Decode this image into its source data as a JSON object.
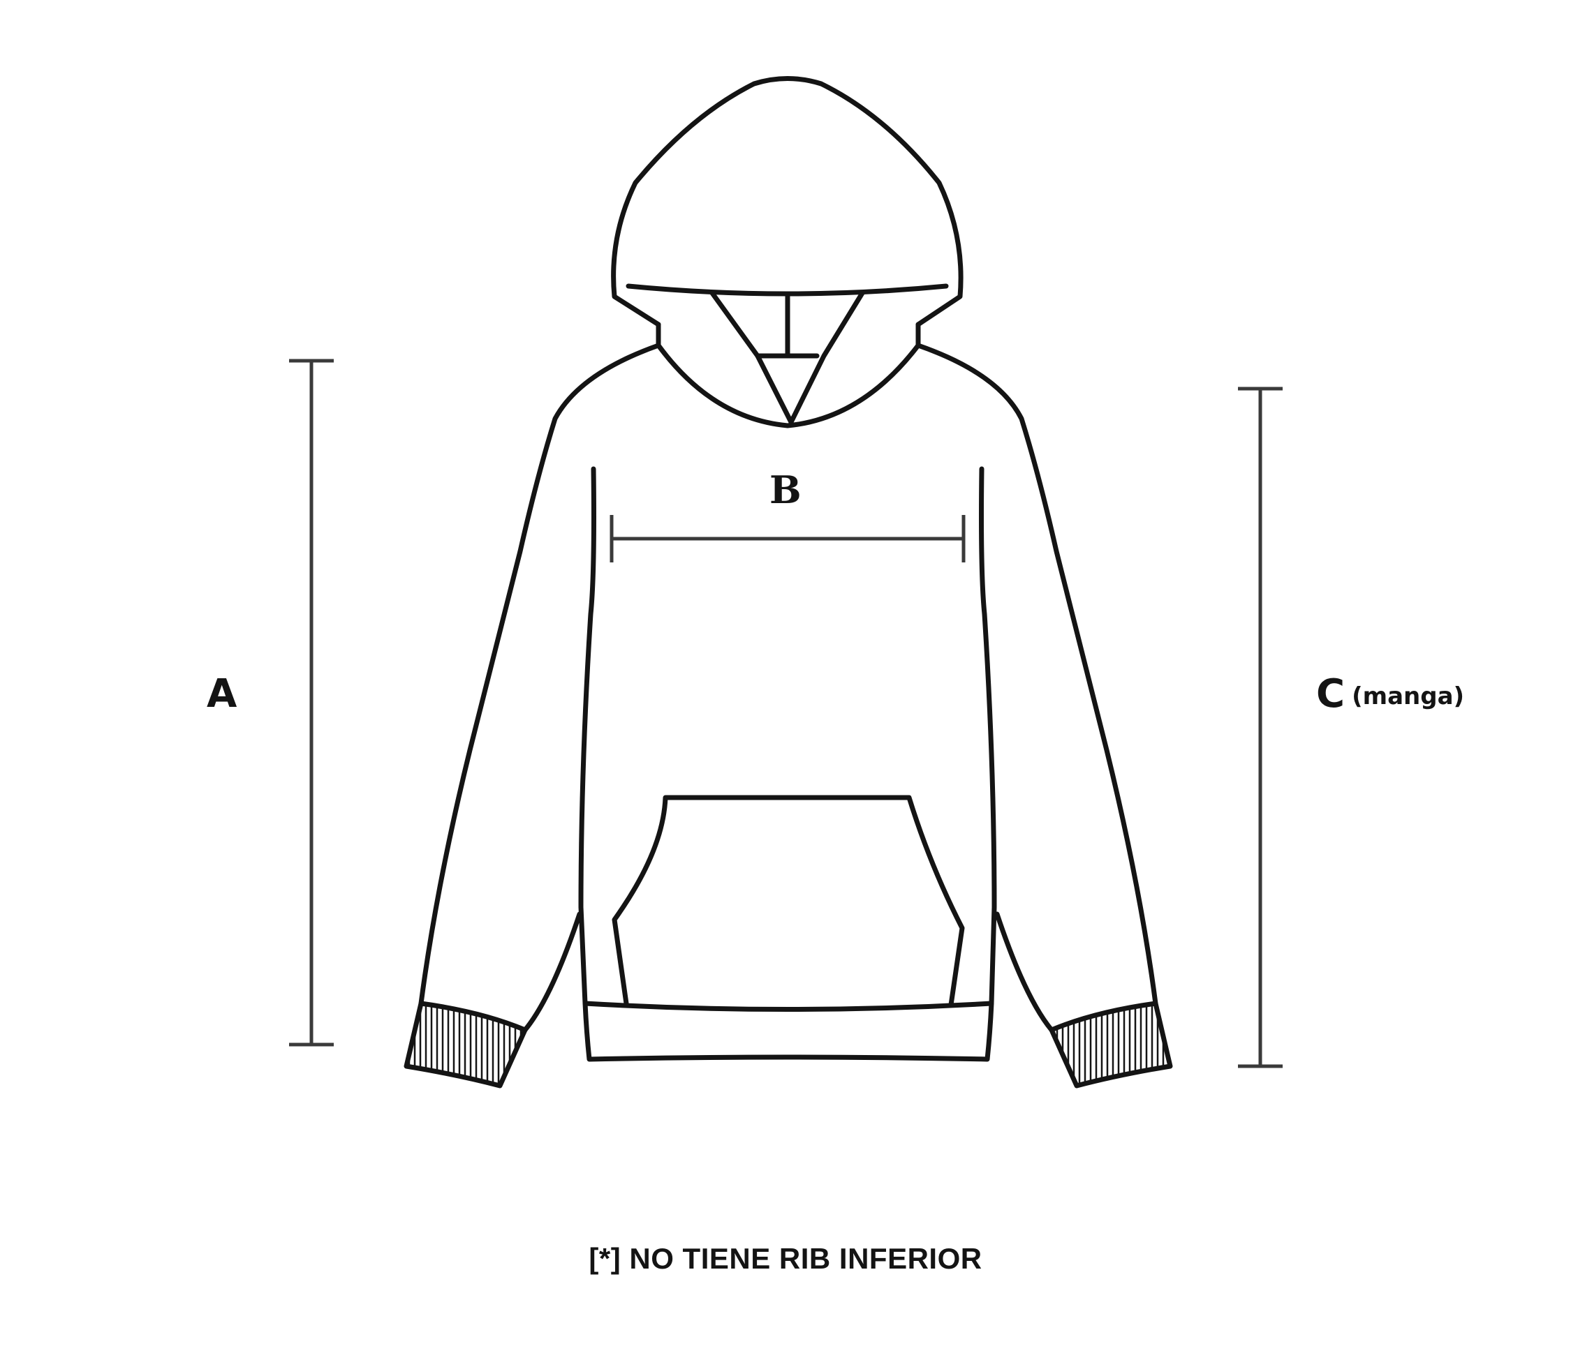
{
  "labels": {
    "a": "A",
    "b": "B",
    "c": "C",
    "c_sub": "(manga)"
  },
  "footnote": "[*] NO TIENE RIB INFERIOR",
  "colors": {
    "outline": "#141414",
    "measure": "#3a3a3a",
    "background": "#ffffff"
  }
}
